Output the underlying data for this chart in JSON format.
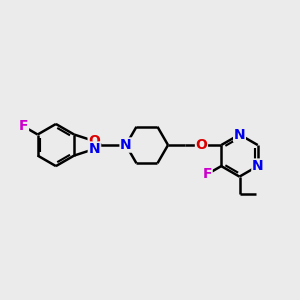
{
  "bg_color": "#ebebeb",
  "bond_color": "#000000",
  "bond_width": 1.8,
  "atom_colors": {
    "N": "#0000ee",
    "O": "#dd0000",
    "F": "#cc00cc"
  },
  "font_size": 10,
  "fig_size": [
    3.0,
    3.0
  ],
  "dpi": 100
}
